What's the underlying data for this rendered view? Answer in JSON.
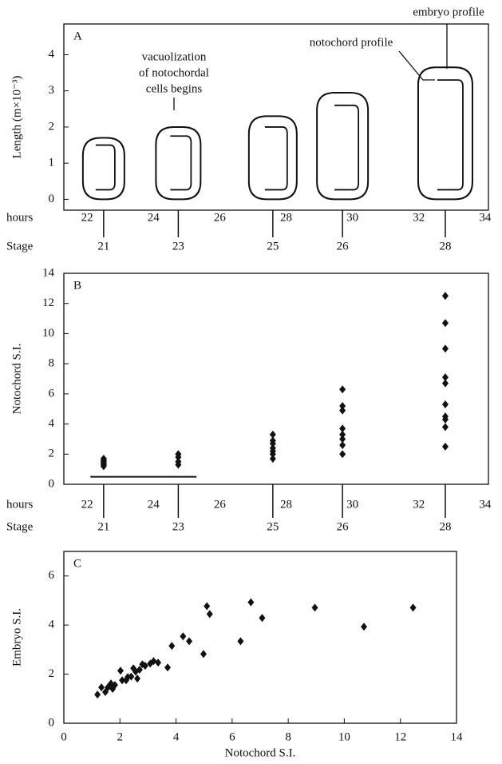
{
  "chart_data": [
    {
      "type": "profiles",
      "label": "A",
      "y_label": "Length (m×10⁻³)",
      "ylim": [
        -0.3,
        4.85
      ],
      "yticks": [
        0,
        1,
        2,
        3,
        4
      ],
      "xlim": [
        21.3,
        34.1
      ],
      "x_row_label": "hours",
      "xticks": [
        22,
        24,
        26,
        28,
        30,
        32,
        34
      ],
      "stage_row_label": "Stage",
      "stages": [
        "21",
        "23",
        "25",
        "26",
        "28"
      ],
      "stage_x": [
        22.5,
        24.75,
        27.6,
        29.7,
        32.8
      ],
      "series": [
        {
          "name": "embryo profile",
          "values": [
            1.7,
            2.0,
            2.3,
            2.95,
            3.65
          ]
        },
        {
          "name": "notochord profile",
          "values": [
            1.5,
            1.75,
            2.0,
            2.6,
            3.3
          ]
        }
      ],
      "annotation": [
        "vacuolization",
        "of notochordal",
        "cells begins"
      ]
    },
    {
      "type": "scatter",
      "label": "B",
      "y_label": "Notochord S.I.",
      "ylim": [
        0,
        14
      ],
      "yticks": [
        0,
        2,
        4,
        6,
        8,
        10,
        12,
        14
      ],
      "xlim": [
        21.3,
        34.1
      ],
      "x_row_label": "hours",
      "xticks": [
        22,
        24,
        26,
        28,
        30,
        32,
        34
      ],
      "stage_row_label": "Stage",
      "stages": [
        "21",
        "23",
        "25",
        "26",
        "28"
      ],
      "stage_x": [
        22.5,
        24.75,
        27.6,
        29.7,
        32.8
      ],
      "x": [
        22.5,
        22.5,
        22.5,
        22.5,
        22.5,
        22.5,
        24.75,
        24.75,
        24.75,
        24.75,
        27.6,
        27.6,
        27.6,
        27.6,
        27.6,
        27.6,
        27.6,
        29.7,
        29.7,
        29.7,
        29.7,
        29.7,
        29.7,
        29.7,
        29.7,
        32.8,
        32.8,
        32.8,
        32.8,
        32.8,
        32.8,
        32.8,
        32.8,
        32.8,
        32.8
      ],
      "y": [
        1.2,
        1.3,
        1.4,
        1.5,
        1.6,
        1.7,
        1.3,
        1.5,
        1.8,
        2.0,
        1.7,
        2.0,
        2.2,
        2.4,
        2.7,
        2.9,
        3.3,
        2.0,
        2.6,
        3.0,
        3.3,
        3.7,
        4.9,
        5.2,
        6.3,
        2.5,
        3.8,
        4.3,
        4.5,
        5.3,
        6.7,
        7.1,
        9.0,
        10.7,
        12.5
      ],
      "hline": {
        "y": 0.5,
        "x": [
          22.1,
          25.3
        ]
      }
    },
    {
      "type": "scatter",
      "label": "C",
      "x_label": "Notochord S.I.",
      "y_label": "Embryo S.I.",
      "xlim": [
        0,
        14
      ],
      "xticks": [
        0,
        2,
        4,
        6,
        8,
        10,
        12,
        14
      ],
      "ylim": [
        0,
        7
      ],
      "yticks": [
        0,
        2,
        4,
        6
      ],
      "x": [
        1.2,
        1.34,
        1.48,
        1.57,
        1.68,
        1.74,
        1.82,
        2.02,
        2.08,
        2.22,
        2.28,
        2.4,
        2.48,
        2.56,
        2.62,
        2.7,
        2.8,
        2.9,
        3.08,
        3.2,
        3.36,
        3.7,
        3.85,
        4.25,
        4.47,
        4.98,
        5.1,
        5.2,
        6.3,
        6.67,
        7.07,
        8.95,
        10.7,
        12.45
      ],
      "y": [
        1.17,
        1.46,
        1.27,
        1.46,
        1.62,
        1.4,
        1.56,
        2.14,
        1.75,
        1.75,
        1.88,
        1.9,
        2.24,
        2.1,
        1.82,
        2.18,
        2.4,
        2.34,
        2.43,
        2.53,
        2.47,
        2.27,
        3.15,
        3.54,
        3.34,
        2.82,
        4.77,
        4.45,
        3.34,
        4.93,
        4.29,
        4.71,
        3.93,
        4.71
      ]
    }
  ]
}
